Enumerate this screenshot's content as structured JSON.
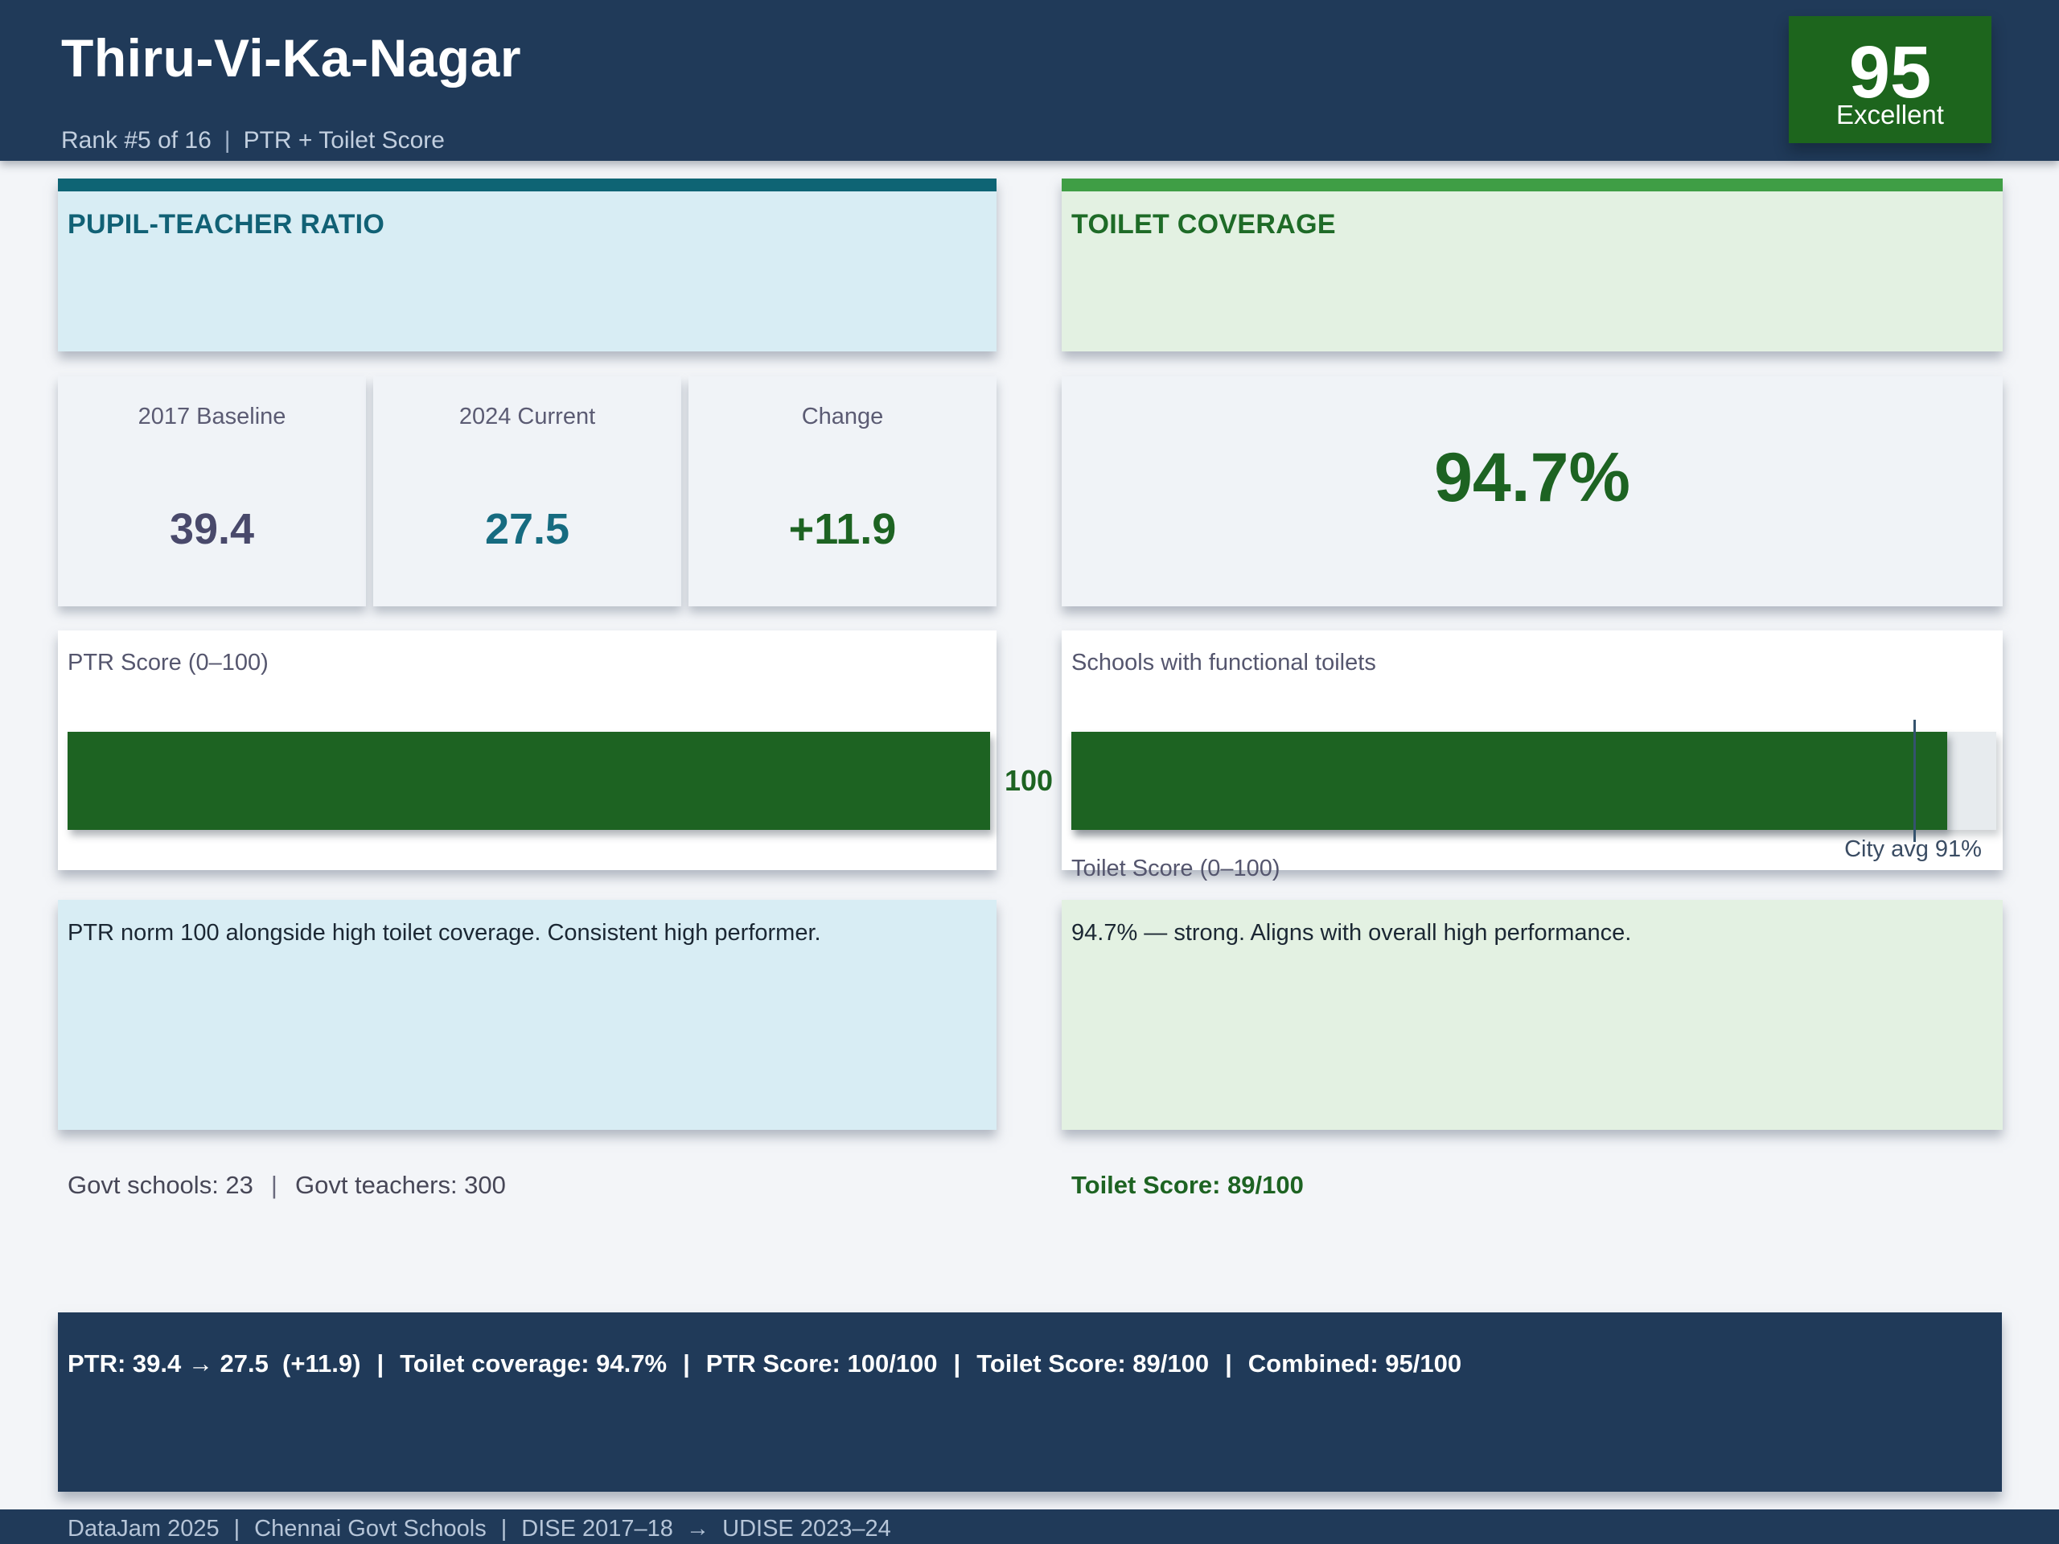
{
  "header": {
    "title": "Thiru-Vi-Ka-Nagar",
    "rank": "Rank #5 of 16",
    "metric": "PTR + Toilet Score",
    "badge": {
      "score": "95",
      "label": "Excellent"
    }
  },
  "separators": {
    "pipe": "|"
  },
  "ptr_card": {
    "title": "PUPIL-TEACHER RATIO",
    "stats": [
      {
        "label": "2017 Baseline",
        "value": "39.4"
      },
      {
        "label": "2024 Current",
        "value": "27.5"
      },
      {
        "label": "Change",
        "value": "+11.9"
      }
    ],
    "score_label": "PTR Score (0–100)",
    "score_value": "100",
    "note": "PTR norm 100 alongside high toilet coverage. Consistent high performer.",
    "govt_schools": "Govt schools: 23",
    "govt_teachers": "Govt teachers: 300"
  },
  "toilet_card": {
    "title": "TOILET COVERAGE",
    "coverage_value": "94.7%",
    "bar_label": "Schools with functional toilets",
    "city_avg_label": "City avg 91%",
    "score_axis_label": "Toilet Score (0–100)",
    "note": "94.7% — strong. Aligns with overall high performance.",
    "score_line": "Toilet Score: 89/100"
  },
  "summary_bar": {
    "segments": [
      "PTR: 39.4 → 27.5  (+11.9)",
      "Toilet coverage: 94.7%",
      "PTR Score: 100/100",
      "Toilet Score: 89/100",
      "Combined: 95/100"
    ]
  },
  "footer": {
    "segments": [
      "DataJam 2025",
      "Chennai Govt Schools",
      "DISE 2017–18  →  UDISE 2023–24"
    ]
  },
  "colors": {
    "navy": "#203a59",
    "teal_accent": "#0e6474",
    "teal_text": "#116175",
    "green_accent": "#3f9e45",
    "green_text": "#1e6b27",
    "bar_green": "#1d6322",
    "bar_track": "#e7ebee",
    "light_blue_bg": "#d8edf4",
    "light_green_bg": "#e3f1e2",
    "badge_green": "#1d651d"
  },
  "chart_data": [
    {
      "type": "bar",
      "title": "PTR Score (0–100)",
      "orientation": "horizontal",
      "categories": [
        "PTR Score"
      ],
      "series": [
        {
          "name": "PTR Score",
          "values": [
            100
          ]
        }
      ],
      "xlim": [
        0,
        100
      ],
      "grid": false,
      "legend": "none",
      "bar_color": "#1d6322",
      "value_labels": [
        "100"
      ]
    },
    {
      "type": "bar",
      "title": "Schools with functional toilets",
      "orientation": "horizontal",
      "categories": [
        "Toilet coverage %"
      ],
      "series": [
        {
          "name": "Toilet coverage",
          "values": [
            94.7
          ]
        }
      ],
      "xlim": [
        0,
        100
      ],
      "grid": false,
      "legend": "none",
      "bar_color": "#1d6322",
      "track_color": "#e7ebee",
      "reference_line": {
        "value": 91,
        "label": "City avg 91%"
      }
    }
  ]
}
